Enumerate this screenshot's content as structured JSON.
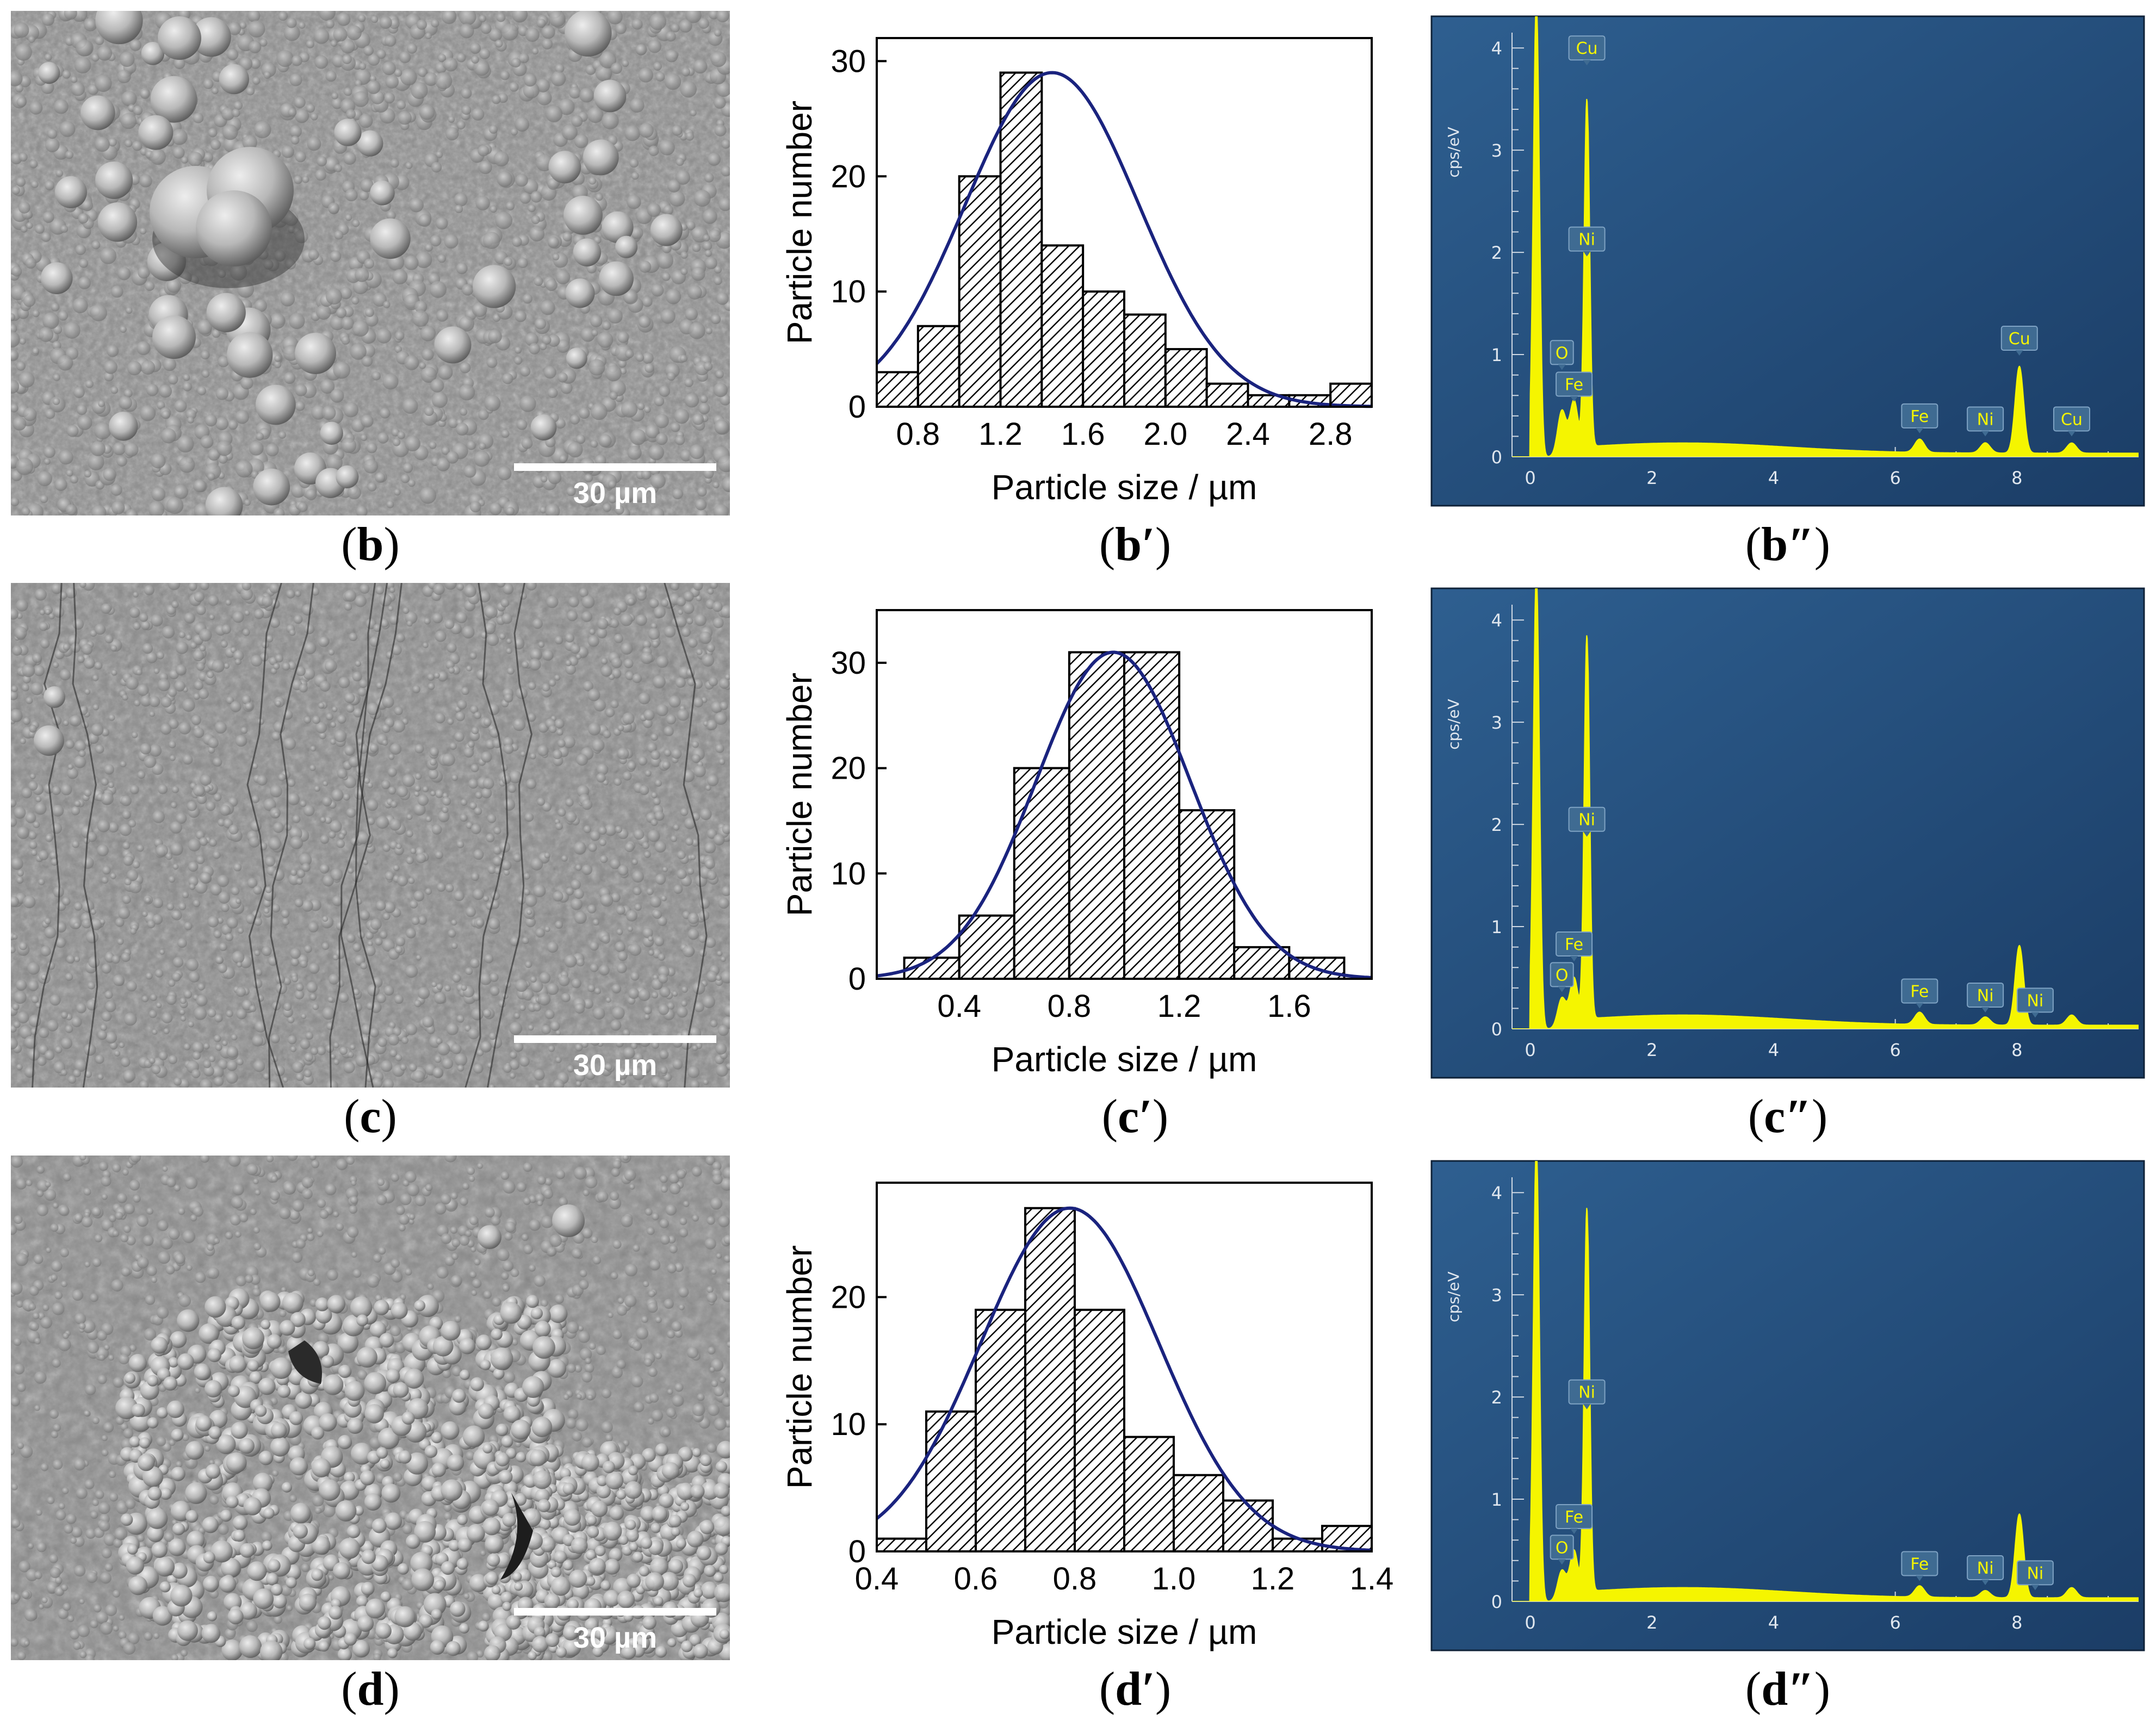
{
  "panels": [
    {
      "id": "b",
      "sem_label": {
        "letter": "b",
        "prime": ""
      },
      "sem_scale": "30 µm",
      "hist_label": {
        "letter": "b",
        "prime": "′"
      },
      "eds_label": {
        "letter": "b",
        "prime": "″"
      },
      "sem_style": "large-nodules"
    },
    {
      "id": "c",
      "sem_label": {
        "letter": "c",
        "prime": ""
      },
      "sem_scale": "30 µm",
      "hist_label": {
        "letter": "c",
        "prime": "′"
      },
      "eds_label": {
        "letter": "c",
        "prime": "″"
      },
      "sem_style": "fine-nodules-cracked"
    },
    {
      "id": "d",
      "sem_label": {
        "letter": "d",
        "prime": ""
      },
      "sem_scale": "30 µm",
      "hist_label": {
        "letter": "d",
        "prime": "′"
      },
      "eds_label": {
        "letter": "d",
        "prime": "″"
      },
      "sem_style": "agglomerated"
    }
  ],
  "chart_data": [
    {
      "type": "bar",
      "panel": "b′",
      "subtype": "histogram",
      "xlabel": "Particle size / µm",
      "ylabel": "Particle number",
      "xlim": [
        0.6,
        3.0
      ],
      "ylim": [
        0,
        32
      ],
      "xticks": [
        "0.8",
        "1.2",
        "1.6",
        "2.0",
        "2.4",
        "2.8"
      ],
      "yticks": [
        "0",
        "10",
        "20",
        "30"
      ],
      "bin_width": 0.2,
      "bin_centers": [
        0.7,
        0.9,
        1.1,
        1.3,
        1.5,
        1.7,
        1.9,
        2.1,
        2.3,
        2.5,
        2.7,
        2.9
      ],
      "values": [
        3,
        7,
        20,
        29,
        14,
        10,
        8,
        5,
        2,
        1,
        1,
        2
      ],
      "fit": {
        "type": "gaussian",
        "mean": 1.45,
        "sigma": 0.42,
        "amplitude": 29
      }
    },
    {
      "type": "bar",
      "panel": "c′",
      "subtype": "histogram",
      "xlabel": "Particle size / µm",
      "ylabel": "Particle number",
      "xlim": [
        0.1,
        1.9
      ],
      "ylim": [
        0,
        35
      ],
      "xticks": [
        "0.4",
        "0.8",
        "1.2",
        "1.6"
      ],
      "yticks": [
        "0",
        "10",
        "20",
        "30"
      ],
      "bin_width": 0.2,
      "bin_centers": [
        0.3,
        0.5,
        0.7,
        0.9,
        1.1,
        1.3,
        1.5,
        1.7
      ],
      "values": [
        2,
        6,
        20,
        31,
        31,
        16,
        3,
        2
      ],
      "fit": {
        "type": "gaussian",
        "mean": 0.96,
        "sigma": 0.28,
        "amplitude": 31
      }
    },
    {
      "type": "bar",
      "panel": "d′",
      "subtype": "histogram",
      "xlabel": "Particle size / µm",
      "ylabel": "Particle number",
      "xlim": [
        0.4,
        1.4
      ],
      "ylim": [
        0,
        29
      ],
      "xticks": [
        "0.4",
        "0.6",
        "0.8",
        "1.0",
        "1.2",
        "1.4"
      ],
      "yticks": [
        "0",
        "10",
        "20"
      ],
      "bin_width": 0.1,
      "bin_centers": [
        0.45,
        0.55,
        0.65,
        0.75,
        0.85,
        0.95,
        1.05,
        1.15,
        1.25,
        1.35
      ],
      "values": [
        1,
        11,
        19,
        27,
        19,
        9,
        6,
        4,
        1,
        2
      ],
      "fit": {
        "type": "gaussian",
        "mean": 0.79,
        "sigma": 0.18,
        "amplitude": 27
      }
    },
    {
      "type": "area",
      "panel": "b″",
      "subtype": "eds-spectrum",
      "ylabel": "cps/eV",
      "xlim": [
        -0.3,
        10.0
      ],
      "ylim": [
        0,
        4.15
      ],
      "xticks": [
        "0",
        "2",
        "4",
        "6",
        "8"
      ],
      "yticks": [
        "0",
        "1",
        "2",
        "3",
        "4"
      ],
      "peaks": [
        {
          "x": 0.1,
          "h": 4.5,
          "w": 0.05
        },
        {
          "x": 0.52,
          "h": 0.45,
          "w": 0.07
        },
        {
          "x": 0.72,
          "h": 0.55,
          "w": 0.07
        },
        {
          "x": 0.93,
          "h": 3.5,
          "w": 0.045
        },
        {
          "x": 6.4,
          "h": 0.13,
          "w": 0.08
        },
        {
          "x": 7.48,
          "h": 0.1,
          "w": 0.08
        },
        {
          "x": 8.04,
          "h": 0.85,
          "w": 0.07
        },
        {
          "x": 8.9,
          "h": 0.1,
          "w": 0.08
        }
      ],
      "labels": [
        {
          "text": "Cu",
          "x": 0.93,
          "y": 4.0
        },
        {
          "text": "Ni",
          "x": 0.93,
          "y": 2.13
        },
        {
          "text": "O",
          "x": 0.52,
          "y": 1.02
        },
        {
          "text": "Fe",
          "x": 0.72,
          "y": 0.71
        },
        {
          "text": "Cu",
          "x": 8.04,
          "y": 1.16
        },
        {
          "text": "Fe",
          "x": 6.4,
          "y": 0.4
        },
        {
          "text": "Ni",
          "x": 7.48,
          "y": 0.37
        },
        {
          "text": "Cu",
          "x": 8.9,
          "y": 0.37
        }
      ]
    },
    {
      "type": "area",
      "panel": "c″",
      "subtype": "eds-spectrum",
      "ylabel": "cps/eV",
      "xlim": [
        -0.3,
        10.0
      ],
      "ylim": [
        0,
        4.15
      ],
      "xticks": [
        "0",
        "2",
        "4",
        "6",
        "8"
      ],
      "yticks": [
        "0",
        "1",
        "2",
        "3",
        "4"
      ],
      "peaks": [
        {
          "x": 0.1,
          "h": 4.5,
          "w": 0.05
        },
        {
          "x": 0.52,
          "h": 0.3,
          "w": 0.07
        },
        {
          "x": 0.72,
          "h": 0.5,
          "w": 0.07
        },
        {
          "x": 0.93,
          "h": 3.85,
          "w": 0.045
        },
        {
          "x": 6.4,
          "h": 0.12,
          "w": 0.08
        },
        {
          "x": 7.48,
          "h": 0.08,
          "w": 0.08
        },
        {
          "x": 8.04,
          "h": 0.78,
          "w": 0.07
        },
        {
          "x": 8.9,
          "h": 0.1,
          "w": 0.08
        }
      ],
      "labels": [
        {
          "text": "Ni",
          "x": 0.93,
          "y": 2.05
        },
        {
          "text": "Fe",
          "x": 0.72,
          "y": 0.83
        },
        {
          "text": "O",
          "x": 0.52,
          "y": 0.53
        },
        {
          "text": "Fe",
          "x": 6.4,
          "y": 0.37
        },
        {
          "text": "Ni",
          "x": 7.48,
          "y": 0.33
        },
        {
          "text": "Ni",
          "x": 8.3,
          "y": 0.28
        }
      ]
    },
    {
      "type": "area",
      "panel": "d″",
      "subtype": "eds-spectrum",
      "ylabel": "cps/eV",
      "xlim": [
        -0.3,
        10.0
      ],
      "ylim": [
        0,
        4.15
      ],
      "xticks": [
        "0",
        "2",
        "4",
        "6",
        "8"
      ],
      "yticks": [
        "0",
        "1",
        "2",
        "3",
        "4"
      ],
      "peaks": [
        {
          "x": 0.1,
          "h": 4.5,
          "w": 0.05
        },
        {
          "x": 0.52,
          "h": 0.3,
          "w": 0.07
        },
        {
          "x": 0.72,
          "h": 0.5,
          "w": 0.07
        },
        {
          "x": 0.93,
          "h": 3.85,
          "w": 0.045
        },
        {
          "x": 6.4,
          "h": 0.11,
          "w": 0.08
        },
        {
          "x": 7.48,
          "h": 0.07,
          "w": 0.08
        },
        {
          "x": 8.04,
          "h": 0.82,
          "w": 0.07
        },
        {
          "x": 8.9,
          "h": 0.1,
          "w": 0.08
        }
      ],
      "labels": [
        {
          "text": "Ni",
          "x": 0.93,
          "y": 2.05
        },
        {
          "text": "Fe",
          "x": 0.72,
          "y": 0.83
        },
        {
          "text": "O",
          "x": 0.52,
          "y": 0.53
        },
        {
          "text": "Fe",
          "x": 6.4,
          "y": 0.37
        },
        {
          "text": "Ni",
          "x": 7.48,
          "y": 0.33
        },
        {
          "text": "Ni",
          "x": 8.3,
          "y": 0.28
        }
      ]
    }
  ],
  "colors": {
    "fit_line": "#1a237e",
    "bar_fill": "hatched-black-white",
    "eds_bg_top": "#2b5a8a",
    "eds_bg_bottom": "#1c3f68",
    "eds_spectrum": "#f5f500",
    "eds_label_text": "#f5f500",
    "eds_label_box": "#3f6b92",
    "sem_gray": "#8a8a8a"
  }
}
